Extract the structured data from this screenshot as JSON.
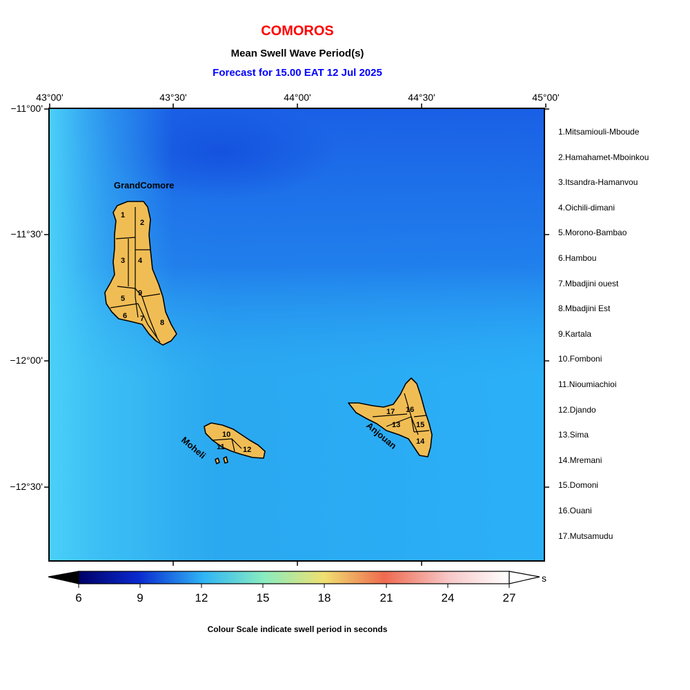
{
  "header": {
    "title": "COMOROS",
    "subtitle": "Mean Swell Wave Period(s)",
    "forecast": "Forecast for  15.00 EAT 12 Jul 2025"
  },
  "axes": {
    "lon_ticks": [
      "43°00'",
      "43°30'",
      "44°00'",
      "44°30'",
      "45°00'"
    ],
    "lat_ticks": [
      "−11°00'",
      "−11°30'",
      "−12°00'",
      "−12°30'"
    ]
  },
  "islands": {
    "grand_comore": "GrandComore",
    "moheli": "Moheli",
    "anjouan": "Anjouan"
  },
  "districts": [
    "1.Mitsamiouli-Mboude",
    "2.Hamahamet-Mboinkou",
    "3.Itsandra-Hamanvou",
    "4.Oichili-dimani",
    "5.Morono-Bambao",
    "6.Hambou",
    "7.Mbadjini ouest",
    "8.Mbadjini Est",
    "9.Kartala",
    "10.Fomboni",
    "11.Nioumiachioi",
    "12.Djando",
    "13.Sima",
    "14.Mremani",
    "15.Domoni",
    "16.Ouani",
    "17.Mutsamudu"
  ],
  "district_numbers": [
    "1",
    "2",
    "3",
    "4",
    "5",
    "6",
    "7",
    "8",
    "9",
    "10",
    "11",
    "12",
    "13",
    "14",
    "15",
    "16",
    "17"
  ],
  "colorbar": {
    "ticks": [
      "6",
      "9",
      "12",
      "15",
      "18",
      "21",
      "24",
      "27"
    ],
    "unit": "s",
    "caption": "Colour Scale indicate swell period in seconds",
    "colors": [
      "#000066",
      "#0a2ad0",
      "#2fb5f5",
      "#88ecc0",
      "#f0e070",
      "#ee6a50",
      "#f7c8c8",
      "#ffffff"
    ]
  },
  "land_color": "#f0bd55"
}
